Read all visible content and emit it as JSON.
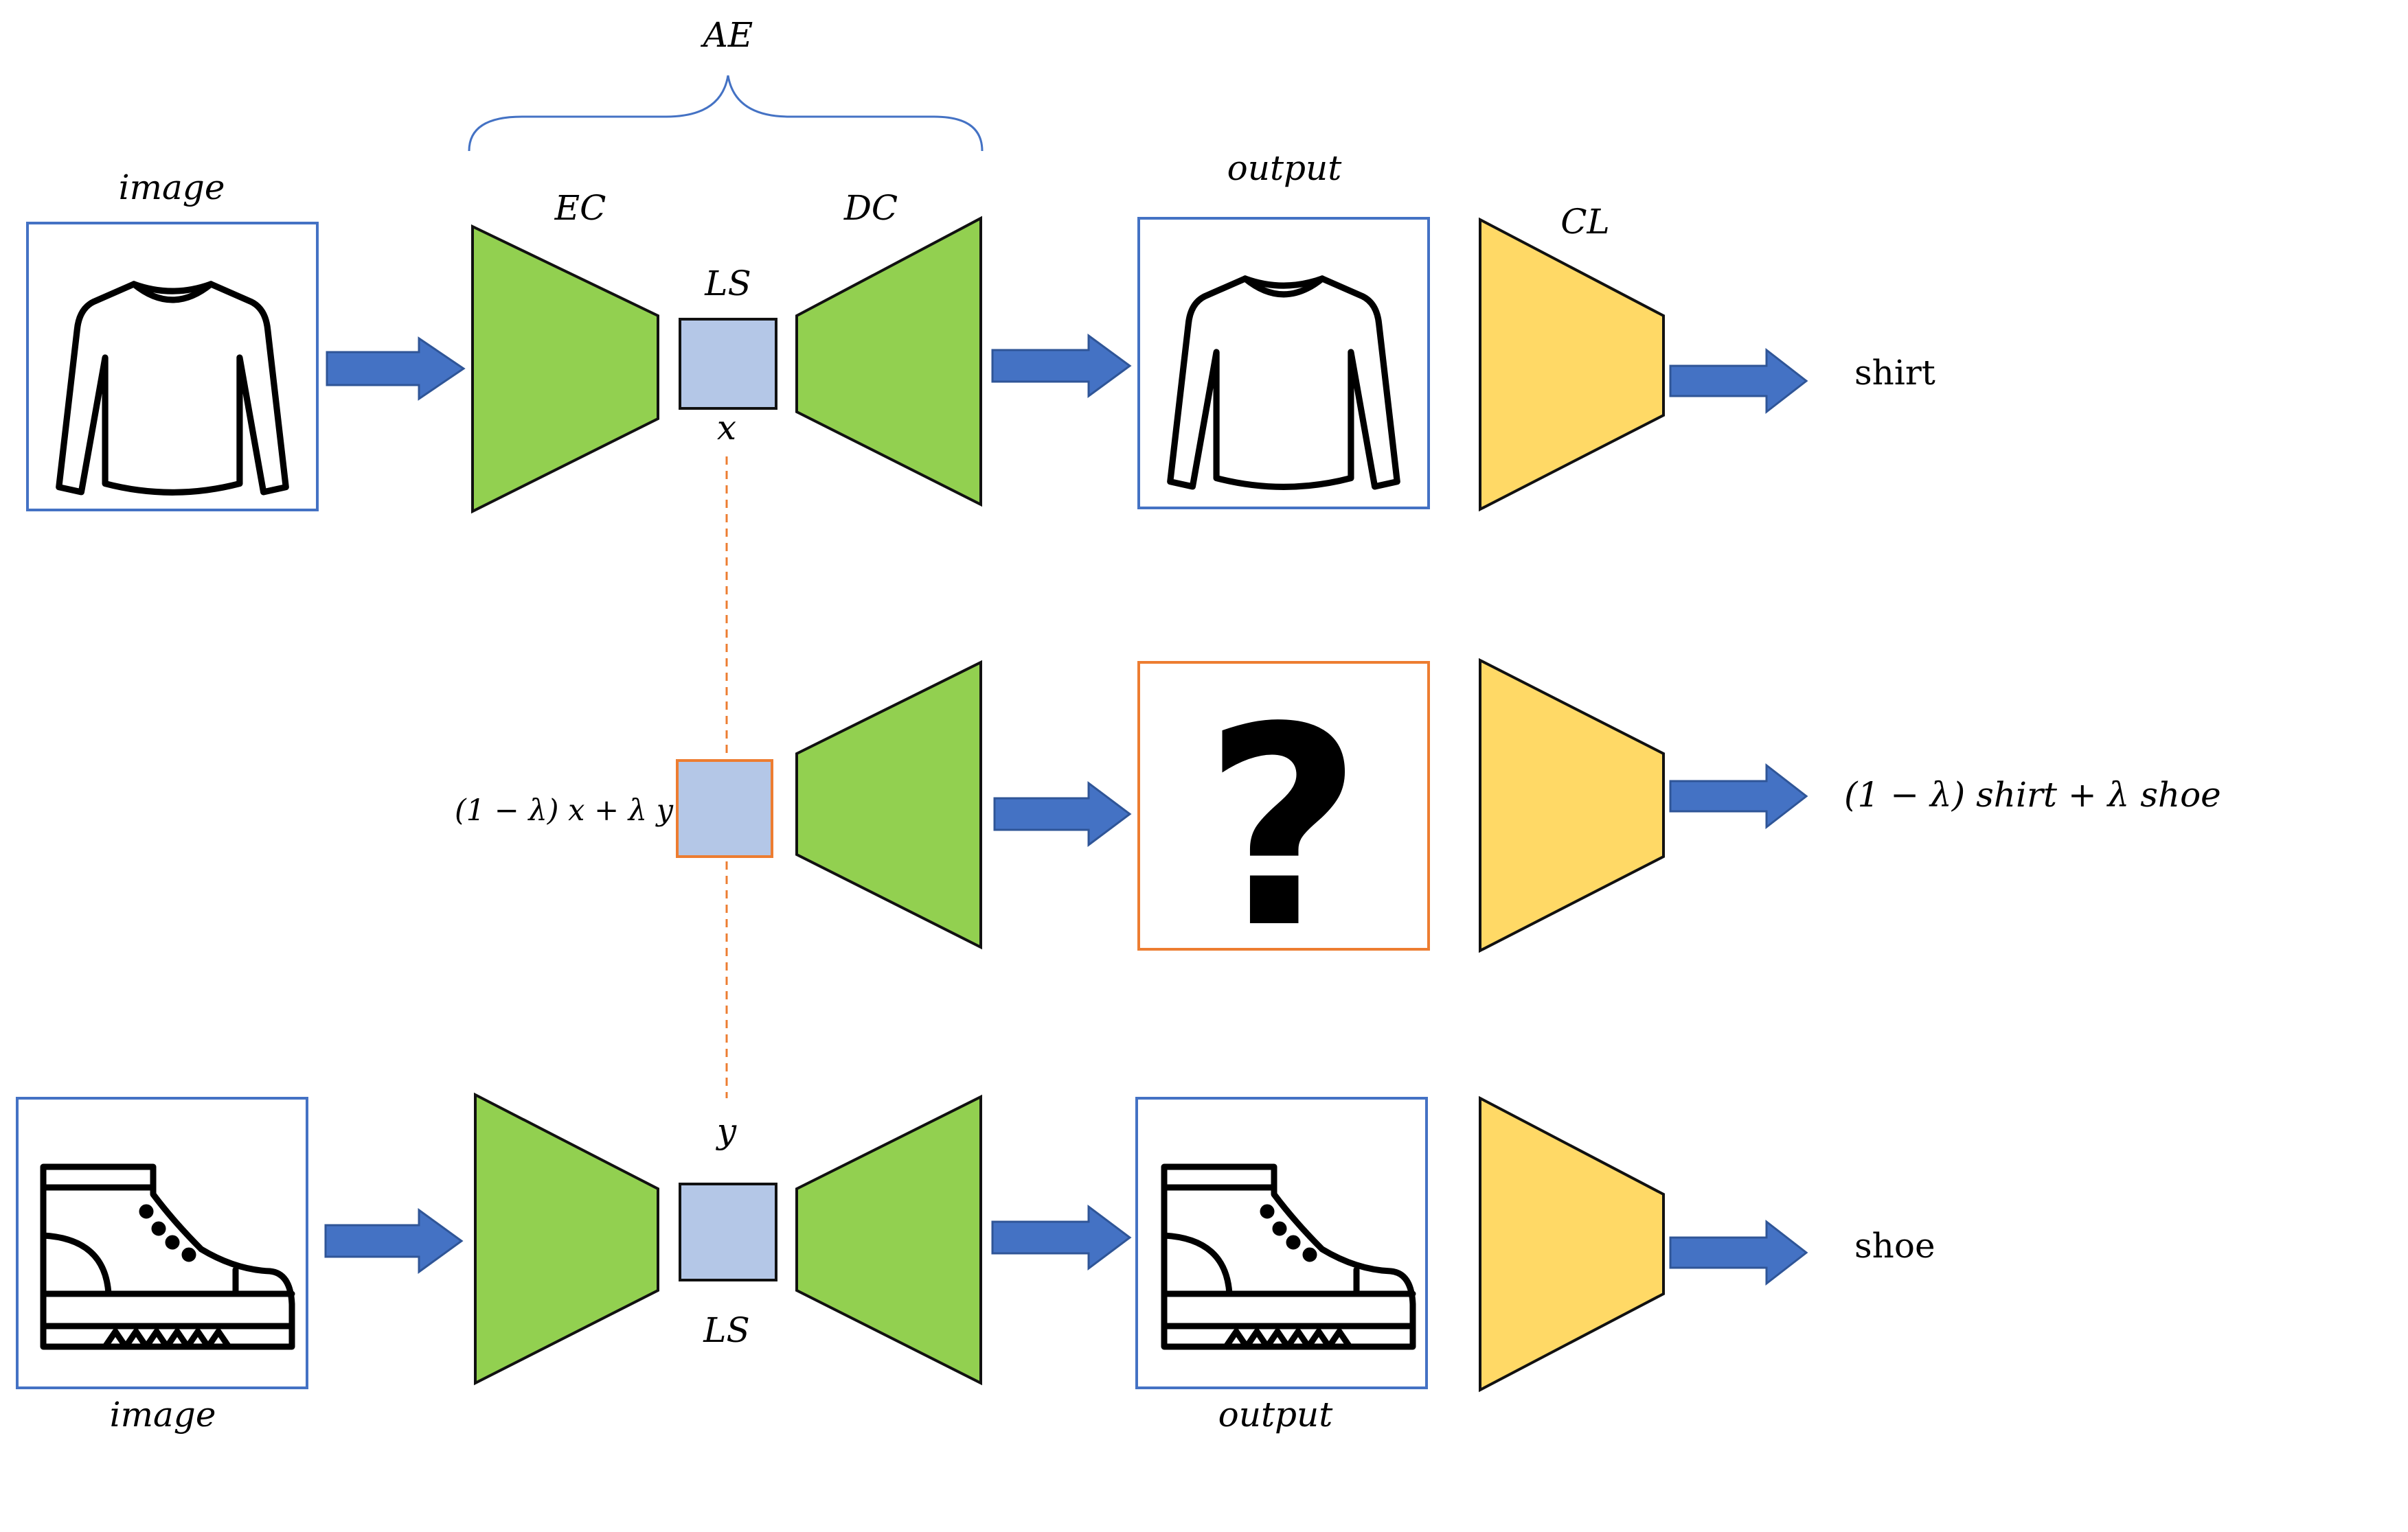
{
  "labels": {
    "ae": "AE",
    "ec": "EC",
    "dc": "DC",
    "cl": "CL",
    "ls_top": "LS",
    "ls_bottom": "LS",
    "x": "x",
    "y": "y",
    "image_top": "image",
    "image_bottom": "image",
    "output_top": "output",
    "output_bottom": "output",
    "mix_latent": "(1 − λ) x + λ y",
    "result_top": "shirt",
    "result_bottom": "shoe",
    "result_mix": "(1 − λ) shirt + λ shoe",
    "unknown": "?"
  },
  "colors": {
    "encoder_decoder": "#92d050",
    "classifier": "#ffd966",
    "latent": "#b4c7e7",
    "arrow": "#4472c4",
    "frame_blue": "#4472c4",
    "frame_orange": "#ed7d31",
    "dash": "#ed7d31"
  },
  "icons": {
    "input_top": "shirt-icon",
    "output_top": "shirt-icon",
    "input_bottom": "boot-icon",
    "output_bottom": "boot-icon",
    "output_mix": "question-mark-icon"
  }
}
